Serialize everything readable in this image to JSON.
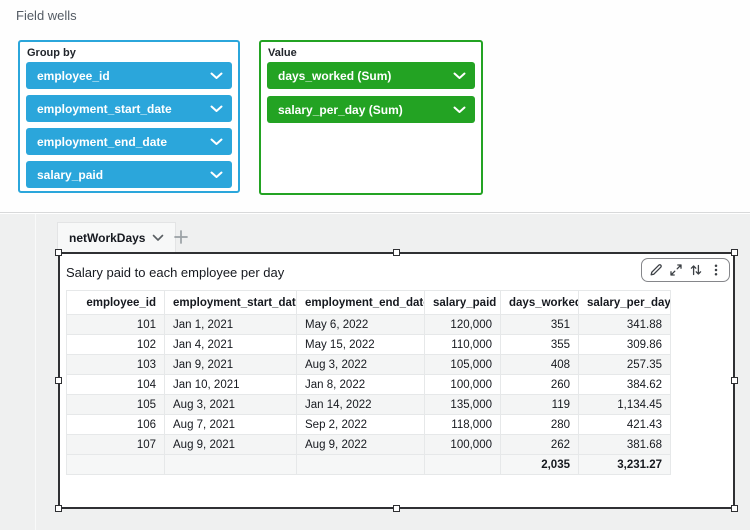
{
  "field_wells": {
    "title": "Field wells",
    "group_by": {
      "label": "Group by",
      "pills": [
        "employee_id",
        "employment_start_date",
        "employment_end_date",
        "salary_paid"
      ]
    },
    "value": {
      "label": "Value",
      "pills": [
        "days_worked (Sum)",
        "salary_per_day (Sum)"
      ]
    }
  },
  "sheet": {
    "active_tab": "netWorkDays"
  },
  "visual": {
    "title": "Salary paid to each employee per day",
    "toolbar_icons": [
      "edit-pencil",
      "maximize",
      "swap-arrows",
      "menu-dots"
    ],
    "table": {
      "columns": [
        "employee_id",
        "employment_start_date",
        "employment_end_date",
        "salary_paid",
        "days_worked",
        "salary_per_day"
      ],
      "rows": [
        [
          "101",
          "Jan 1, 2021",
          "May 6, 2022",
          "120,000",
          "351",
          "341.88"
        ],
        [
          "102",
          "Jan 4, 2021",
          "May 15, 2022",
          "110,000",
          "355",
          "309.86"
        ],
        [
          "103",
          "Jan 9, 2021",
          "Aug 3, 2022",
          "105,000",
          "408",
          "257.35"
        ],
        [
          "104",
          "Jan 10, 2021",
          "Jan 8, 2022",
          "100,000",
          "260",
          "384.62"
        ],
        [
          "105",
          "Aug 3, 2021",
          "Jan 14, 2022",
          "135,000",
          "119",
          "1,134.45"
        ],
        [
          "106",
          "Aug 7, 2021",
          "Sep 2, 2022",
          "118,000",
          "280",
          "421.43"
        ],
        [
          "107",
          "Aug 9, 2021",
          "Aug 9, 2022",
          "100,000",
          "262",
          "381.68"
        ]
      ],
      "totals": [
        "",
        "",
        "",
        "",
        "2,035",
        "3,231.27"
      ]
    }
  },
  "colors": {
    "dimension_blue": "#2BA6DB",
    "measure_green": "#23A323",
    "selection_border": "#2F3033",
    "sheet_background": "#EFF0F0"
  }
}
